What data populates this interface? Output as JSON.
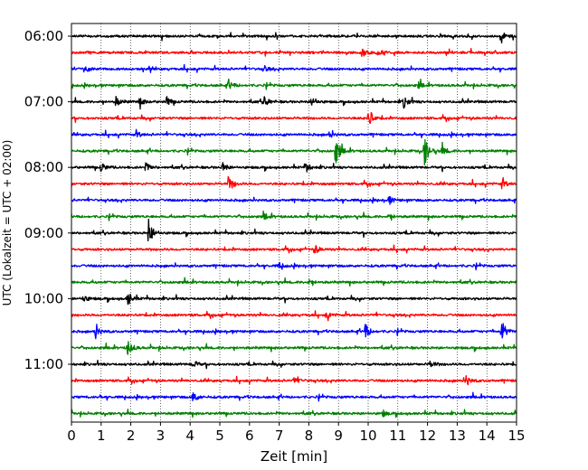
{
  "chart_data": {
    "type": "line",
    "title": "",
    "xlabel": "Zeit  [min]",
    "ylabel": "UTC (Lokalzeit = UTC + 02:00)",
    "xlim": [
      0,
      15
    ],
    "x_ticks": [
      "0",
      "1",
      "2",
      "3",
      "4",
      "5",
      "6",
      "7",
      "8",
      "9",
      "10",
      "11",
      "12",
      "13",
      "14",
      "15"
    ],
    "vertical_grid": "dotted, every 1 min",
    "trace_interval_minutes": 15,
    "y_ticks": [
      {
        "label": "06:00",
        "trace_index": 0
      },
      {
        "label": "07:00",
        "trace_index": 4
      },
      {
        "label": "08:00",
        "trace_index": 8
      },
      {
        "label": "09:00",
        "trace_index": 12
      },
      {
        "label": "10:00",
        "trace_index": 16
      },
      {
        "label": "11:00",
        "trace_index": 20
      }
    ],
    "color_cycle": [
      "#000000",
      "#ff0000",
      "#0000ff",
      "#008000"
    ],
    "traces": [
      {
        "time": "06:00",
        "events": [
          [
            14.5,
            5
          ]
        ]
      },
      {
        "time": "06:15",
        "events": [
          [
            9.8,
            5
          ],
          [
            10.3,
            4
          ]
        ]
      },
      {
        "time": "06:30",
        "events": [
          [
            0.5,
            3
          ],
          [
            6.5,
            3
          ]
        ]
      },
      {
        "time": "06:45",
        "events": [
          [
            5.3,
            5
          ],
          [
            11.7,
            3
          ]
        ]
      },
      {
        "time": "07:00",
        "events": [
          [
            1.5,
            5
          ],
          [
            2.3,
            5
          ],
          [
            3.2,
            5
          ],
          [
            6.5,
            6
          ],
          [
            8.1,
            6
          ],
          [
            11.2,
            6
          ]
        ]
      },
      {
        "time": "07:15",
        "events": [
          [
            10.0,
            12
          ]
        ]
      },
      {
        "time": "07:30",
        "events": [
          [
            2.2,
            3
          ],
          [
            8.7,
            3
          ]
        ]
      },
      {
        "time": "07:45",
        "events": [
          [
            8.9,
            16
          ],
          [
            11.9,
            16
          ],
          [
            12.5,
            5
          ]
        ]
      },
      {
        "time": "08:00",
        "events": [
          [
            1.0,
            5
          ],
          [
            2.5,
            5
          ],
          [
            5.1,
            5
          ],
          [
            7.9,
            5
          ]
        ]
      },
      {
        "time": "08:15",
        "events": [
          [
            5.3,
            10
          ],
          [
            14.5,
            5
          ]
        ]
      },
      {
        "time": "08:30",
        "events": [
          [
            10.7,
            4
          ]
        ]
      },
      {
        "time": "08:45",
        "events": [
          [
            6.5,
            3
          ],
          [
            10.7,
            3
          ]
        ]
      },
      {
        "time": "09:00",
        "events": [
          [
            2.6,
            16
          ]
        ]
      },
      {
        "time": "09:15",
        "events": [
          [
            8.2,
            5
          ]
        ]
      },
      {
        "time": "09:30",
        "events": [
          [
            7.0,
            3
          ]
        ]
      },
      {
        "time": "09:45",
        "events": [
          [
            8.0,
            3
          ]
        ]
      },
      {
        "time": "10:00",
        "events": [
          [
            1.9,
            8
          ],
          [
            0.4,
            4
          ]
        ]
      },
      {
        "time": "10:15",
        "events": [
          [
            8.6,
            4
          ]
        ]
      },
      {
        "time": "10:30",
        "events": [
          [
            0.8,
            8
          ],
          [
            9.9,
            8
          ],
          [
            14.5,
            12
          ]
        ]
      },
      {
        "time": "10:45",
        "events": [
          [
            1.9,
            9
          ]
        ]
      },
      {
        "time": "11:00",
        "events": [
          [
            4.1,
            4
          ],
          [
            12.1,
            4
          ]
        ]
      },
      {
        "time": "11:15",
        "events": [
          [
            7.5,
            4
          ],
          [
            13.3,
            6
          ]
        ]
      },
      {
        "time": "11:30",
        "events": [
          [
            4.1,
            6
          ]
        ]
      },
      {
        "time": "11:45",
        "events": [
          [
            10.5,
            3
          ]
        ]
      }
    ]
  }
}
